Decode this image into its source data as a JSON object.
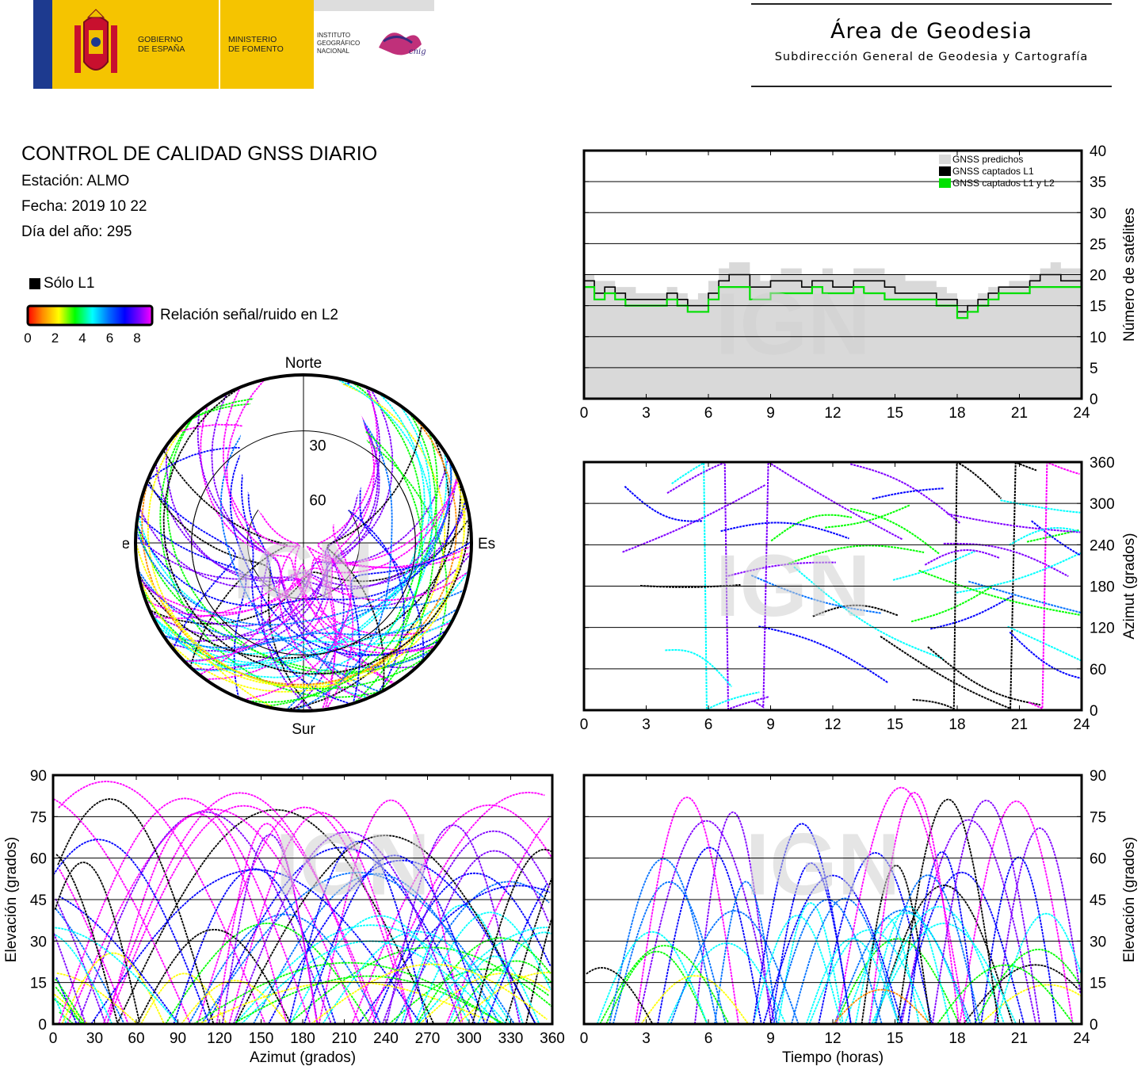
{
  "header": {
    "gov_label": "GOBIERNO\nDE ESPAÑA",
    "ministry_label": "MINISTERIO\nDE FOMENTO",
    "institute_label": "INSTITUTO\nGEOGRÁFICO\nNACIONAL",
    "cnig_label": "cnig",
    "area_title": "Área de Geodesia",
    "area_subtitle": "Subdirección General de Geodesia y Cartografía"
  },
  "report": {
    "title": "CONTROL DE CALIDAD GNSS DIARIO",
    "station": "Estación: ALMO",
    "date": "Fecha: 2019 10 22",
    "doy": "Día del año: 295"
  },
  "legend": {
    "only_l1": "Sólo L1",
    "snr_label": "Relación señal/ruido en L2",
    "snr_ticks": [
      "0",
      "2",
      "4",
      "6",
      "8"
    ]
  },
  "watermark": "IGN",
  "colors": {
    "predicted": "#d9d9d9",
    "l1": "#000000",
    "l1l2": "#00e000",
    "snr_scale": [
      "#ff0000",
      "#ff8c00",
      "#ffff00",
      "#00ff00",
      "#00ffff",
      "#0070ff",
      "#0000ff",
      "#8000ff",
      "#ff00ff"
    ]
  },
  "chart_data": [
    {
      "id": "skyplot",
      "type": "scatter",
      "title": "",
      "projection": "polar",
      "direction_labels": {
        "north": "Norte",
        "south": "Sur",
        "east": "Este",
        "west": "Oeste"
      },
      "ring_labels": [
        "30",
        "60"
      ],
      "note": "Satellite tracks (azimuth/elevation) colored by L2 SNR"
    },
    {
      "id": "satellite-count",
      "type": "line",
      "xlabel": "",
      "ylabel": "Número de satélites",
      "xlim": [
        0,
        24
      ],
      "ylim": [
        0,
        40
      ],
      "xticks": [
        "0",
        "3",
        "6",
        "9",
        "12",
        "15",
        "18",
        "21",
        "24"
      ],
      "yticks": [
        "0",
        "5",
        "10",
        "15",
        "20",
        "25",
        "30",
        "35",
        "40"
      ],
      "legend_position": "top-right",
      "series": [
        {
          "name": "GNSS predichos",
          "style": "area",
          "color": "#d9d9d9",
          "x": [
            0,
            0.5,
            1,
            1.5,
            2,
            2.5,
            3,
            3.5,
            4,
            4.5,
            5,
            5.5,
            6,
            6.5,
            7,
            7.5,
            8,
            8.5,
            9,
            9.5,
            10,
            10.5,
            11,
            11.5,
            12,
            12.5,
            13,
            13.5,
            14,
            14.5,
            15,
            15.5,
            16,
            16.5,
            17,
            17.5,
            18,
            18.5,
            19,
            19.5,
            20,
            20.5,
            21,
            21.5,
            22,
            22.5,
            23,
            23.5,
            24
          ],
          "values": [
            20,
            19,
            19,
            18,
            18,
            17,
            17,
            17,
            18,
            17,
            16,
            17,
            19,
            21,
            22,
            22,
            20,
            19,
            20,
            21,
            21,
            20,
            20,
            21,
            20,
            20,
            21,
            21,
            21,
            20,
            20,
            19,
            19,
            19,
            18,
            17,
            16,
            16,
            17,
            18,
            18,
            19,
            19,
            20,
            21,
            22,
            21,
            21,
            20
          ]
        },
        {
          "name": "GNSS captados L1",
          "style": "step",
          "color": "#000000",
          "x": [
            0,
            0.5,
            1,
            1.5,
            2,
            2.5,
            3,
            3.5,
            4,
            4.5,
            5,
            5.5,
            6,
            6.5,
            7,
            7.5,
            8,
            8.5,
            9,
            9.5,
            10,
            10.5,
            11,
            11.5,
            12,
            12.5,
            13,
            13.5,
            14,
            14.5,
            15,
            15.5,
            16,
            16.5,
            17,
            17.5,
            18,
            18.5,
            19,
            19.5,
            20,
            20.5,
            21,
            21.5,
            22,
            22.5,
            23,
            23.5,
            24
          ],
          "values": [
            19,
            17,
            18,
            17,
            16,
            16,
            16,
            16,
            17,
            16,
            15,
            15,
            17,
            19,
            20,
            20,
            18,
            18,
            19,
            19,
            19,
            18,
            19,
            19,
            18,
            18,
            19,
            19,
            19,
            18,
            17,
            17,
            17,
            17,
            16,
            16,
            14,
            15,
            16,
            17,
            18,
            18,
            18,
            19,
            20,
            20,
            19,
            19,
            18
          ]
        },
        {
          "name": "GNSS captados L1 y L2",
          "style": "step",
          "color": "#00e000",
          "x": [
            0,
            0.5,
            1,
            1.5,
            2,
            2.5,
            3,
            3.5,
            4,
            4.5,
            5,
            5.5,
            6,
            6.5,
            7,
            7.5,
            8,
            8.5,
            9,
            9.5,
            10,
            10.5,
            11,
            11.5,
            12,
            12.5,
            13,
            13.5,
            14,
            14.5,
            15,
            15.5,
            16,
            16.5,
            17,
            17.5,
            18,
            18.5,
            19,
            19.5,
            20,
            20.5,
            21,
            21.5,
            22,
            22.5,
            23,
            23.5,
            24
          ],
          "values": [
            18,
            16,
            17,
            16,
            15,
            15,
            15,
            15,
            16,
            15,
            14,
            14,
            16,
            18,
            18,
            18,
            16,
            16,
            17,
            17,
            17,
            17,
            18,
            17,
            17,
            17,
            18,
            17,
            17,
            16,
            16,
            16,
            16,
            16,
            15,
            15,
            13,
            14,
            15,
            16,
            17,
            17,
            17,
            18,
            18,
            18,
            18,
            18,
            17
          ]
        }
      ]
    },
    {
      "id": "azimuth-time",
      "type": "scatter",
      "xlabel": "",
      "ylabel": "Azimut (grados)",
      "xlim": [
        0,
        24
      ],
      "ylim": [
        0,
        360
      ],
      "xticks": [
        "0",
        "3",
        "6",
        "9",
        "12",
        "15",
        "18",
        "21",
        "24"
      ],
      "yticks": [
        "0",
        "60",
        "120",
        "180",
        "240",
        "300",
        "360"
      ]
    },
    {
      "id": "elevation-azimuth",
      "type": "scatter",
      "xlabel": "Azimut (grados)",
      "ylabel": "Elevación (grados)",
      "xlim": [
        0,
        360
      ],
      "ylim": [
        0,
        90
      ],
      "xticks": [
        "0",
        "30",
        "60",
        "90",
        "120",
        "150",
        "180",
        "210",
        "240",
        "270",
        "300",
        "330",
        "360"
      ],
      "yticks": [
        "0",
        "15",
        "30",
        "45",
        "60",
        "75",
        "90"
      ]
    },
    {
      "id": "elevation-time",
      "type": "scatter",
      "xlabel": "Tiempo (horas)",
      "ylabel": "Elevación (grados)",
      "xlim": [
        0,
        24
      ],
      "ylim": [
        0,
        90
      ],
      "xticks": [
        "0",
        "3",
        "6",
        "9",
        "12",
        "15",
        "18",
        "21",
        "24"
      ],
      "yticks": [
        "0",
        "15",
        "30",
        "45",
        "60",
        "75",
        "90"
      ]
    }
  ]
}
